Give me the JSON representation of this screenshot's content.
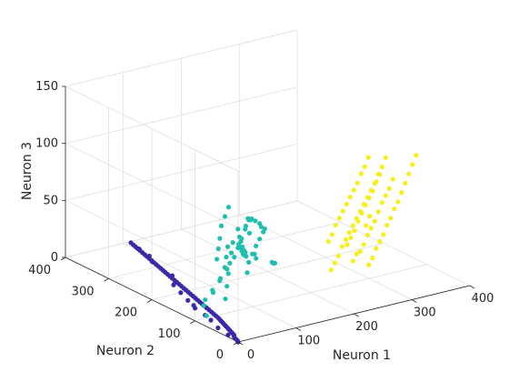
{
  "chart_data": {
    "type": "scatter3d",
    "xlabel": "Neuron 1",
    "ylabel": "Neuron 2",
    "zlabel": "Neuron 3",
    "xlim": [
      0,
      400
    ],
    "ylim": [
      0,
      400
    ],
    "zlim": [
      0,
      150
    ],
    "xticks": [
      "0",
      "100",
      "200",
      "300",
      "400"
    ],
    "yticks": [
      "0",
      "100",
      "200",
      "300",
      "400"
    ],
    "zticks": [
      "0",
      "50",
      "100",
      "150"
    ],
    "grid": true,
    "series": [
      {
        "color": "#3a2aa8",
        "points": [
          [
            0,
            0,
            0
          ],
          [
            2,
            4,
            0
          ],
          [
            4,
            10,
            0
          ],
          [
            5,
            14,
            0
          ],
          [
            8,
            20,
            0
          ],
          [
            12,
            26,
            0
          ],
          [
            14,
            32,
            0
          ],
          [
            16,
            38,
            0
          ],
          [
            18,
            44,
            0
          ],
          [
            20,
            50,
            0
          ],
          [
            22,
            56,
            0
          ],
          [
            24,
            62,
            0
          ],
          [
            26,
            68,
            0
          ],
          [
            28,
            74,
            0
          ],
          [
            30,
            80,
            0
          ],
          [
            32,
            86,
            0
          ],
          [
            34,
            92,
            0
          ],
          [
            36,
            100,
            0
          ],
          [
            38,
            108,
            0
          ],
          [
            40,
            116,
            0
          ],
          [
            42,
            124,
            0
          ],
          [
            44,
            132,
            0
          ],
          [
            46,
            140,
            0
          ],
          [
            48,
            148,
            0
          ],
          [
            50,
            156,
            0
          ],
          [
            52,
            164,
            0
          ],
          [
            54,
            172,
            0
          ],
          [
            56,
            180,
            0
          ],
          [
            58,
            188,
            0
          ],
          [
            60,
            196,
            0
          ],
          [
            62,
            204,
            0
          ],
          [
            64,
            212,
            0
          ],
          [
            66,
            220,
            0
          ],
          [
            68,
            228,
            0
          ],
          [
            70,
            236,
            0
          ],
          [
            72,
            244,
            0
          ],
          [
            74,
            252,
            0
          ],
          [
            76,
            260,
            0
          ],
          [
            78,
            268,
            0
          ],
          [
            80,
            276,
            0
          ],
          [
            82,
            284,
            0
          ],
          [
            84,
            292,
            0
          ],
          [
            86,
            300,
            0
          ],
          [
            88,
            308,
            0
          ],
          [
            90,
            316,
            0
          ],
          [
            92,
            324,
            0
          ],
          [
            94,
            332,
            0
          ],
          [
            96,
            340,
            0
          ],
          [
            98,
            348,
            0
          ],
          [
            100,
            356,
            0
          ],
          [
            102,
            364,
            0
          ],
          [
            104,
            372,
            0
          ],
          [
            106,
            380,
            0
          ],
          [
            108,
            388,
            0
          ],
          [
            110,
            396,
            0
          ],
          [
            60,
            230,
            0
          ],
          [
            70,
            240,
            0
          ],
          [
            50,
            200,
            0
          ],
          [
            80,
            260,
            0
          ],
          [
            40,
            170,
            0
          ],
          [
            30,
            140,
            0
          ],
          [
            35,
            150,
            0
          ],
          [
            10,
            60,
            0
          ],
          [
            20,
            90,
            0
          ],
          [
            25,
            110,
            0
          ],
          [
            90,
            320,
            0
          ],
          [
            100,
            340,
            0
          ],
          [
            105,
            370,
            0
          ],
          [
            5,
            30,
            0
          ]
        ]
      },
      {
        "color": "#1fbfaf",
        "points": [
          [
            20,
            100,
            2
          ],
          [
            40,
            130,
            8
          ],
          [
            60,
            140,
            12
          ],
          [
            80,
            150,
            16
          ],
          [
            100,
            160,
            22
          ],
          [
            120,
            170,
            28
          ],
          [
            130,
            175,
            34
          ],
          [
            140,
            180,
            40
          ],
          [
            150,
            185,
            46
          ],
          [
            160,
            190,
            52
          ],
          [
            170,
            195,
            20
          ],
          [
            180,
            200,
            14
          ],
          [
            140,
            160,
            60
          ],
          [
            150,
            170,
            58
          ],
          [
            160,
            175,
            54
          ],
          [
            175,
            185,
            48
          ],
          [
            185,
            195,
            42
          ],
          [
            195,
            200,
            38
          ],
          [
            90,
            170,
            30
          ],
          [
            100,
            180,
            36
          ],
          [
            110,
            190,
            42
          ],
          [
            120,
            200,
            50
          ],
          [
            130,
            205,
            56
          ],
          [
            140,
            210,
            62
          ],
          [
            60,
            110,
            10
          ],
          [
            70,
            120,
            18
          ],
          [
            80,
            130,
            26
          ],
          [
            90,
            140,
            32
          ],
          [
            100,
            150,
            38
          ],
          [
            110,
            160,
            44
          ],
          [
            150,
            200,
            30
          ],
          [
            160,
            210,
            24
          ],
          [
            170,
            220,
            18
          ],
          [
            180,
            230,
            12
          ],
          [
            190,
            240,
            8
          ],
          [
            200,
            250,
            4
          ],
          [
            120,
            140,
            20
          ],
          [
            130,
            150,
            26
          ],
          [
            140,
            150,
            32
          ],
          [
            150,
            160,
            36
          ],
          [
            160,
            165,
            40
          ],
          [
            170,
            170,
            44
          ],
          [
            200,
            190,
            10
          ],
          [
            210,
            200,
            6
          ],
          [
            220,
            210,
            3
          ],
          [
            110,
            130,
            64
          ],
          [
            125,
            145,
            66
          ],
          [
            135,
            155,
            50
          ],
          [
            30,
            120,
            6
          ],
          [
            50,
            125,
            14
          ],
          [
            70,
            135,
            22
          ],
          [
            85,
            145,
            28
          ],
          [
            95,
            155,
            34
          ],
          [
            105,
            165,
            40
          ],
          [
            145,
            195,
            45
          ],
          [
            155,
            205,
            35
          ],
          [
            165,
            215,
            28
          ],
          [
            175,
            225,
            20
          ],
          [
            185,
            235,
            14
          ],
          [
            195,
            245,
            9
          ]
        ]
      },
      {
        "color": "#f7ef1a",
        "points": [
          [
            250,
            120,
            10
          ],
          [
            260,
            125,
            14
          ],
          [
            270,
            130,
            18
          ],
          [
            280,
            135,
            24
          ],
          [
            290,
            140,
            28
          ],
          [
            300,
            145,
            32
          ],
          [
            310,
            150,
            36
          ],
          [
            320,
            155,
            40
          ],
          [
            330,
            160,
            44
          ],
          [
            340,
            165,
            48
          ],
          [
            350,
            170,
            52
          ],
          [
            360,
            175,
            56
          ],
          [
            370,
            180,
            60
          ],
          [
            380,
            185,
            66
          ],
          [
            390,
            190,
            70
          ],
          [
            400,
            195,
            76
          ],
          [
            300,
            120,
            20
          ],
          [
            310,
            125,
            24
          ],
          [
            320,
            130,
            30
          ],
          [
            330,
            135,
            34
          ],
          [
            340,
            140,
            38
          ],
          [
            350,
            145,
            44
          ],
          [
            360,
            150,
            50
          ],
          [
            370,
            155,
            54
          ],
          [
            380,
            160,
            58
          ],
          [
            390,
            165,
            64
          ],
          [
            280,
            150,
            40
          ],
          [
            290,
            155,
            44
          ],
          [
            300,
            160,
            48
          ],
          [
            310,
            165,
            52
          ],
          [
            320,
            170,
            56
          ],
          [
            330,
            175,
            60
          ],
          [
            340,
            180,
            64
          ],
          [
            350,
            185,
            70
          ],
          [
            360,
            190,
            74
          ],
          [
            370,
            195,
            80
          ],
          [
            260,
            140,
            30
          ],
          [
            270,
            145,
            34
          ],
          [
            280,
            110,
            16
          ],
          [
            290,
            115,
            20
          ],
          [
            300,
            100,
            12
          ],
          [
            310,
            105,
            16
          ],
          [
            320,
            110,
            22
          ],
          [
            330,
            115,
            26
          ],
          [
            340,
            120,
            30
          ],
          [
            350,
            125,
            36
          ],
          [
            360,
            130,
            40
          ],
          [
            370,
            135,
            46
          ],
          [
            380,
            140,
            50
          ],
          [
            390,
            145,
            56
          ],
          [
            400,
            150,
            62
          ],
          [
            410,
            155,
            68
          ],
          [
            420,
            160,
            74
          ],
          [
            430,
            165,
            80
          ],
          [
            325,
            150,
            45
          ],
          [
            335,
            155,
            50
          ],
          [
            345,
            160,
            54
          ],
          [
            355,
            165,
            58
          ],
          [
            365,
            170,
            64
          ],
          [
            375,
            175,
            68
          ],
          [
            285,
            130,
            26
          ],
          [
            295,
            135,
            30
          ],
          [
            305,
            140,
            34
          ],
          [
            315,
            145,
            40
          ],
          [
            325,
            140,
            36
          ],
          [
            335,
            145,
            42
          ]
        ]
      }
    ]
  }
}
